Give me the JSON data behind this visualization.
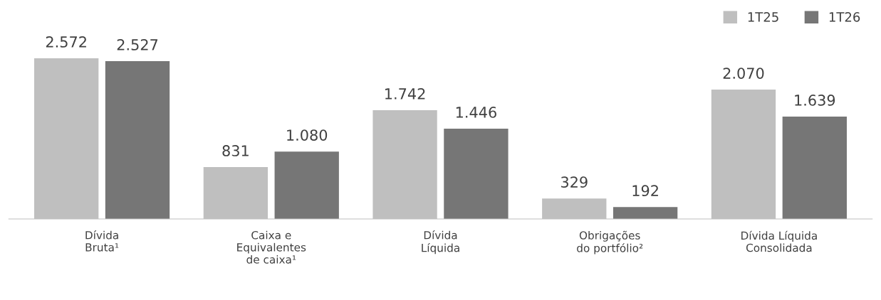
{
  "chart_data": {
    "type": "bar",
    "categories": [
      "Dívida\nBruta¹",
      "Caixa e\nEquivalentes\nde caixa¹",
      "Dívida\nLíquida",
      "Obrigações\ndo portfólio²",
      "Dívida Líquida\nConsolidada"
    ],
    "series": [
      {
        "name": "1T25",
        "color": "#bfbfbf",
        "values": [
          2572,
          831,
          1742,
          329,
          2070
        ],
        "value_labels": [
          "2.572",
          "831",
          "1.742",
          "329",
          "2.070"
        ]
      },
      {
        "name": "1T26",
        "color": "#767676",
        "values": [
          2527,
          1080,
          1446,
          192,
          1639
        ],
        "value_labels": [
          "2.527",
          "1.080",
          "1.446",
          "192",
          "1.639"
        ]
      }
    ],
    "legend": "top right",
    "grid": false
  }
}
